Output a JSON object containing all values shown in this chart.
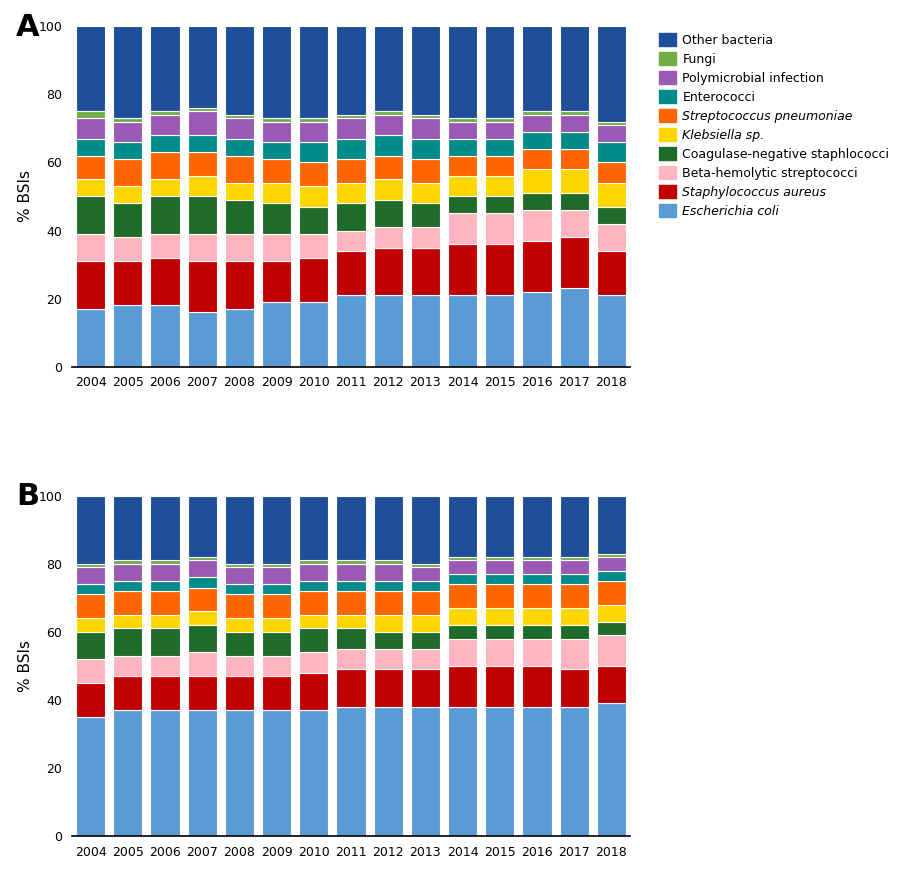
{
  "years": [
    2004,
    2005,
    2006,
    2007,
    2008,
    2009,
    2010,
    2011,
    2012,
    2013,
    2014,
    2015,
    2016,
    2017,
    2018
  ],
  "colors": {
    "Escherichia coli": "#5B9BD5",
    "Staphylococcus aureus": "#C00000",
    "Beta-hemolytic streptococci": "#FFB6C1",
    "Coagulase-negative staphlococci": "#1F6B2A",
    "Klebsiella sp.": "#FFD700",
    "Streptococcus pneumoniae": "#FF6600",
    "Enterococci": "#008B8B",
    "Polymicrobial infection": "#9B59B6",
    "Fungi": "#70AD47",
    "Other bacteria": "#1F4E9A"
  },
  "legend_labels": [
    "Other bacteria",
    "Fungi",
    "Polymicrobial infection",
    "Enterococci",
    "Streptococcus pneumoniae",
    "Klebsiella sp.",
    "Coagulase-negative staphlococci",
    "Beta-hemolytic streptococci",
    "Staphylococcus aureus",
    "Escherichia coli"
  ],
  "italic_labels": [
    "Streptococcus pneumoniae",
    "Klebsiella sp.",
    "Staphylococcus aureus",
    "Escherichia coli"
  ],
  "male_data": {
    "Escherichia coli": [
      17,
      18,
      18,
      16,
      17,
      19,
      19,
      21,
      21,
      21,
      21,
      21,
      22,
      23,
      21
    ],
    "Staphylococcus aureus": [
      14,
      13,
      14,
      15,
      14,
      12,
      13,
      13,
      14,
      14,
      15,
      15,
      15,
      15,
      13
    ],
    "Beta-hemolytic streptococci": [
      8,
      7,
      7,
      8,
      8,
      8,
      7,
      6,
      6,
      6,
      9,
      9,
      9,
      8,
      8
    ],
    "Coagulase-negative staphlococci": [
      11,
      10,
      11,
      11,
      10,
      9,
      8,
      8,
      8,
      7,
      5,
      5,
      5,
      5,
      5
    ],
    "Klebsiella sp.": [
      5,
      5,
      5,
      6,
      5,
      6,
      6,
      6,
      6,
      6,
      6,
      6,
      7,
      7,
      7
    ],
    "Streptococcus pneumoniae": [
      7,
      8,
      8,
      7,
      8,
      7,
      7,
      7,
      7,
      7,
      6,
      6,
      6,
      6,
      6
    ],
    "Enterococci": [
      5,
      5,
      5,
      5,
      5,
      5,
      6,
      6,
      6,
      6,
      5,
      5,
      5,
      5,
      6
    ],
    "Polymicrobial infection": [
      6,
      6,
      6,
      7,
      6,
      6,
      6,
      6,
      6,
      6,
      5,
      5,
      5,
      5,
      5
    ],
    "Fungi": [
      2,
      1,
      1,
      1,
      1,
      1,
      1,
      1,
      1,
      1,
      1,
      1,
      1,
      1,
      1
    ],
    "Other bacteria": [
      25,
      27,
      25,
      24,
      26,
      27,
      27,
      26,
      25,
      26,
      27,
      27,
      25,
      25,
      28
    ]
  },
  "female_data": {
    "Escherichia coli": [
      35,
      37,
      37,
      37,
      37,
      37,
      37,
      38,
      38,
      38,
      38,
      38,
      38,
      38,
      39
    ],
    "Staphylococcus aureus": [
      10,
      10,
      10,
      10,
      10,
      10,
      11,
      11,
      11,
      11,
      12,
      12,
      12,
      11,
      11
    ],
    "Beta-hemolytic streptococci": [
      7,
      6,
      6,
      7,
      6,
      6,
      6,
      6,
      6,
      6,
      8,
      8,
      8,
      9,
      9
    ],
    "Coagulase-negative staphlococci": [
      8,
      8,
      8,
      8,
      7,
      7,
      7,
      6,
      5,
      5,
      4,
      4,
      4,
      4,
      4
    ],
    "Klebsiella sp.": [
      4,
      4,
      4,
      4,
      4,
      4,
      4,
      4,
      5,
      5,
      5,
      5,
      5,
      5,
      5
    ],
    "Streptococcus pneumoniae": [
      7,
      7,
      7,
      7,
      7,
      7,
      7,
      7,
      7,
      7,
      7,
      7,
      7,
      7,
      7
    ],
    "Enterococci": [
      3,
      3,
      3,
      3,
      3,
      3,
      3,
      3,
      3,
      3,
      3,
      3,
      3,
      3,
      3
    ],
    "Polymicrobial infection": [
      5,
      5,
      5,
      5,
      5,
      5,
      5,
      5,
      5,
      4,
      4,
      4,
      4,
      4,
      4
    ],
    "Fungi": [
      1,
      1,
      1,
      1,
      1,
      1,
      1,
      1,
      1,
      1,
      1,
      1,
      1,
      1,
      1
    ],
    "Other bacteria": [
      20,
      19,
      19,
      18,
      20,
      20,
      19,
      19,
      19,
      20,
      18,
      18,
      18,
      18,
      17
    ]
  },
  "stack_order": [
    "Escherichia coli",
    "Staphylococcus aureus",
    "Beta-hemolytic streptococci",
    "Coagulase-negative staphlococci",
    "Klebsiella sp.",
    "Streptococcus pneumoniae",
    "Enterococci",
    "Polymicrobial infection",
    "Fungi",
    "Other bacteria"
  ],
  "ylabel": "% BSIs",
  "ylim": [
    0,
    100
  ],
  "yticks": [
    0,
    20,
    40,
    60,
    80,
    100
  ],
  "label_A": "A",
  "label_B": "B"
}
